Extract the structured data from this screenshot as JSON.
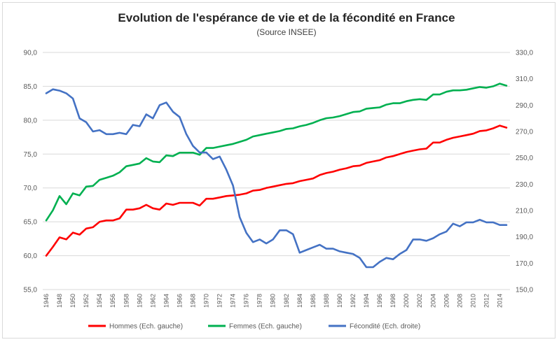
{
  "chart_data": {
    "type": "line",
    "title": "Evolution de l'espérance de vie et de la fécondité en France",
    "subtitle": "(Source INSEE)",
    "grid": true,
    "legend_position": "bottom",
    "y_left": {
      "min": 55,
      "max": 90,
      "ticks": [
        "55,0",
        "60,0",
        "65,0",
        "70,0",
        "75,0",
        "80,0",
        "85,0",
        "90,0"
      ]
    },
    "y_right": {
      "min": 150,
      "max": 330,
      "ticks": [
        "150,0",
        "170,0",
        "190,0",
        "210,0",
        "230,0",
        "250,0",
        "270,0",
        "290,0",
        "310,0",
        "330,0"
      ]
    },
    "x_ticks": [
      "1946",
      "1948",
      "1950",
      "1952",
      "1954",
      "1956",
      "1958",
      "1960",
      "1962",
      "1964",
      "1966",
      "1968",
      "1970",
      "1972",
      "1974",
      "1976",
      "1978",
      "1980",
      "1982",
      "1984",
      "1986",
      "1988",
      "1990",
      "1992",
      "1994",
      "1996",
      "1998",
      "2000",
      "2002",
      "2004",
      "2006",
      "2008",
      "2010",
      "2012",
      "2014"
    ],
    "x": [
      1946,
      1947,
      1948,
      1949,
      1950,
      1951,
      1952,
      1953,
      1954,
      1955,
      1956,
      1957,
      1958,
      1959,
      1960,
      1961,
      1962,
      1963,
      1964,
      1965,
      1966,
      1967,
      1968,
      1969,
      1970,
      1971,
      1972,
      1973,
      1974,
      1975,
      1976,
      1977,
      1978,
      1979,
      1980,
      1981,
      1982,
      1983,
      1984,
      1985,
      1986,
      1987,
      1988,
      1989,
      1990,
      1991,
      1992,
      1993,
      1994,
      1995,
      1996,
      1997,
      1998,
      1999,
      2000,
      2001,
      2002,
      2003,
      2004,
      2005,
      2006,
      2007,
      2008,
      2009,
      2010,
      2011,
      2012,
      2013,
      2014,
      2015
    ],
    "series": [
      {
        "name": "Hommes (Ech. gauche)",
        "axis": "left",
        "color": "#ff0000",
        "values": [
          60.0,
          61.3,
          62.7,
          62.4,
          63.4,
          63.1,
          64.0,
          64.2,
          65.0,
          65.2,
          65.2,
          65.5,
          66.8,
          66.8,
          67.0,
          67.5,
          67.0,
          66.8,
          67.7,
          67.5,
          67.8,
          67.8,
          67.8,
          67.4,
          68.4,
          68.4,
          68.6,
          68.8,
          68.9,
          69.0,
          69.2,
          69.6,
          69.7,
          70.0,
          70.2,
          70.4,
          70.6,
          70.7,
          71.0,
          71.2,
          71.4,
          71.9,
          72.2,
          72.4,
          72.7,
          72.9,
          73.2,
          73.3,
          73.7,
          73.9,
          74.1,
          74.5,
          74.7,
          75.0,
          75.3,
          75.5,
          75.7,
          75.8,
          76.7,
          76.7,
          77.1,
          77.4,
          77.6,
          77.8,
          78.0,
          78.4,
          78.5,
          78.8,
          79.2,
          78.9
        ]
      },
      {
        "name": "Femmes (Ech. gauche)",
        "axis": "left",
        "color": "#00b050",
        "values": [
          65.2,
          66.7,
          68.8,
          67.6,
          69.2,
          68.9,
          70.2,
          70.3,
          71.2,
          71.5,
          71.8,
          72.3,
          73.2,
          73.4,
          73.6,
          74.4,
          73.9,
          73.8,
          74.8,
          74.7,
          75.2,
          75.2,
          75.2,
          74.9,
          75.9,
          75.9,
          76.1,
          76.3,
          76.5,
          76.8,
          77.1,
          77.6,
          77.8,
          78.0,
          78.2,
          78.4,
          78.7,
          78.8,
          79.1,
          79.3,
          79.6,
          80.0,
          80.3,
          80.4,
          80.6,
          80.9,
          81.2,
          81.3,
          81.7,
          81.8,
          81.9,
          82.3,
          82.5,
          82.5,
          82.8,
          83.0,
          83.1,
          83.0,
          83.8,
          83.8,
          84.2,
          84.4,
          84.4,
          84.5,
          84.7,
          84.9,
          84.8,
          85.0,
          85.4,
          85.1
        ]
      },
      {
        "name": "Fécondité (Ech. droite)",
        "axis": "right",
        "color": "#4472c4",
        "values": [
          299,
          302,
          301,
          299,
          295,
          280,
          277,
          270,
          271,
          268,
          268,
          269,
          268,
          275,
          274,
          283,
          280,
          290,
          292,
          285,
          281,
          268,
          259,
          254,
          254,
          249,
          251,
          241,
          229,
          205,
          193,
          186,
          188,
          185,
          188,
          195,
          195,
          192,
          178,
          180,
          182,
          184,
          181,
          181,
          179,
          178,
          177,
          174,
          167,
          167,
          171,
          174,
          173,
          177,
          180,
          188,
          188,
          187,
          189,
          192,
          194,
          200,
          198,
          201,
          201,
          203,
          201,
          201,
          199,
          199
        ]
      }
    ]
  }
}
